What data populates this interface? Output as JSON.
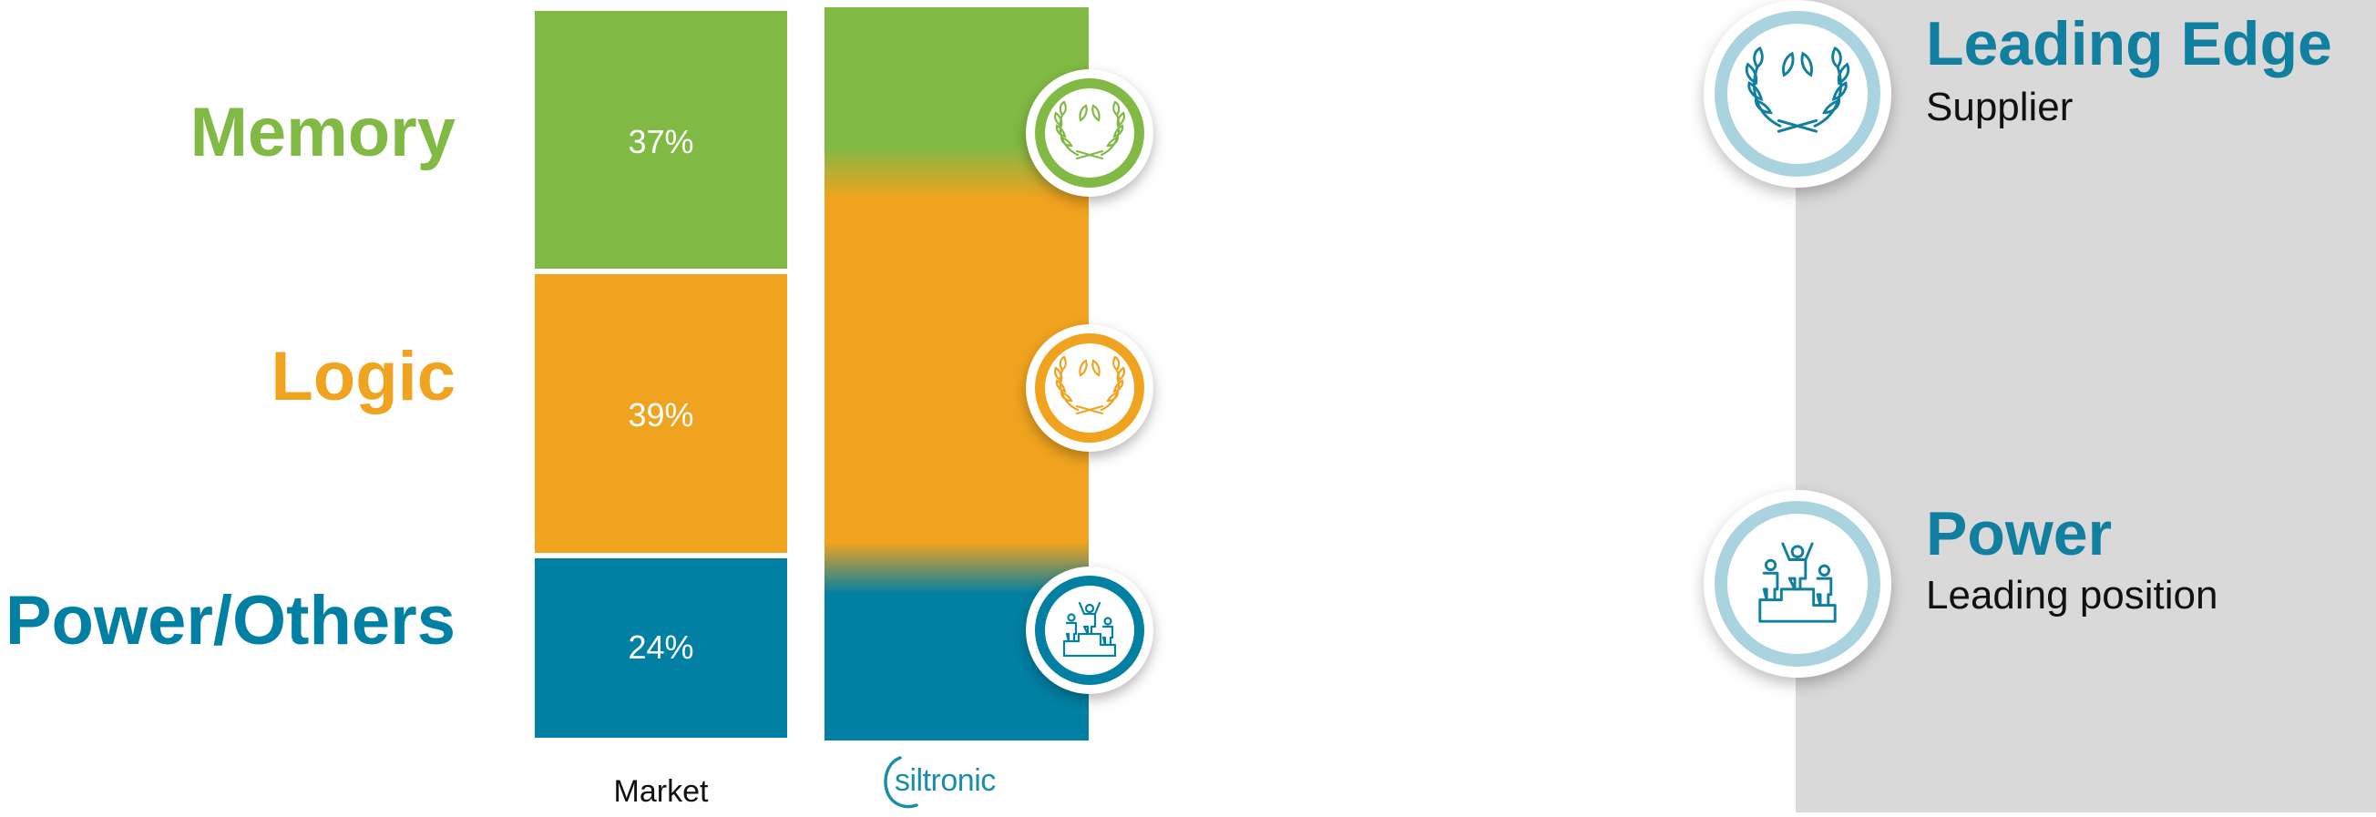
{
  "chart_data": {
    "type": "bar",
    "stacked": true,
    "categories": [
      "Market",
      "siltronic"
    ],
    "segments": [
      "Memory",
      "Logic",
      "Power/Others"
    ],
    "series": [
      {
        "name": "Memory",
        "color": "#80b944",
        "values": [
          37,
          null
        ],
        "label": "37%"
      },
      {
        "name": "Logic",
        "color": "#f0a31f",
        "values": [
          39,
          null
        ],
        "label": "39%"
      },
      {
        "name": "Power/Others",
        "color": "#0180a3",
        "values": [
          24,
          null
        ],
        "label": "24%"
      }
    ],
    "xlabel": "",
    "ylabel": ""
  },
  "labels": {
    "memory": "Memory",
    "logic": "Logic",
    "power_others": "Power/Others",
    "market": "Market",
    "brand": "siltronic"
  },
  "badges": {
    "memory": "laurel-icon",
    "logic": "laurel-icon",
    "power": "podium-icon"
  },
  "right_panel": {
    "background": "#d9d9d9",
    "items": [
      {
        "title": "Leading Edge",
        "subtitle": "Supplier",
        "icon": "laurel-icon"
      },
      {
        "title": "Power",
        "subtitle": "Leading position",
        "icon": "podium-icon"
      }
    ]
  },
  "colors": {
    "memory": "#80b944",
    "logic": "#f0a31f",
    "power": "#0180a3",
    "accent": "#117fa0",
    "ring_light": "#a9d3de"
  }
}
